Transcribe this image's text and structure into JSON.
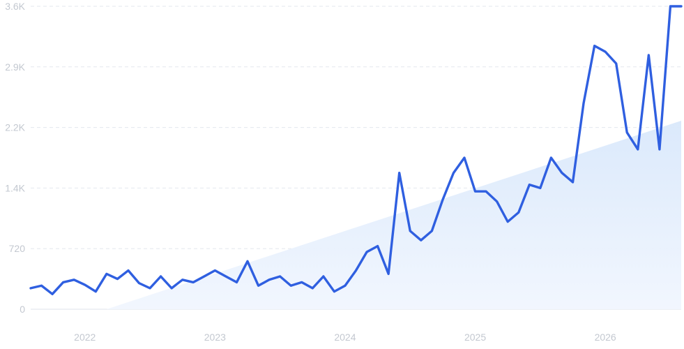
{
  "chart_data": {
    "type": "line",
    "title": "",
    "xlabel": "",
    "ylabel": "",
    "y_ticks": [
      {
        "value": 0,
        "label": "0"
      },
      {
        "value": 720,
        "label": "720"
      },
      {
        "value": 1440,
        "label": "1.4K"
      },
      {
        "value": 2160,
        "label": "2.2K"
      },
      {
        "value": 2880,
        "label": "2.9K"
      },
      {
        "value": 3600,
        "label": "3.6K"
      }
    ],
    "x_ticks": [
      {
        "value": "2022-01",
        "label": "2022"
      },
      {
        "value": "2023-01",
        "label": "2023"
      },
      {
        "value": "2024-01",
        "label": "2024"
      },
      {
        "value": "2025-01",
        "label": "2025"
      },
      {
        "value": "2026-01",
        "label": "2026"
      }
    ],
    "ylim": [
      0,
      3600
    ],
    "xlim": [
      "2021-08",
      "2026-08"
    ],
    "grid": true,
    "colors": {
      "line": "#2f5fe0",
      "trend_fill_top": "#d9e8fb",
      "trend_fill_bottom": "#f1f6fe",
      "grid": "#e3e7ee",
      "tick_text": "#c3c8d0"
    },
    "trend": {
      "type": "area",
      "x": [
        "2022-03",
        "2026-08"
      ],
      "values": [
        0,
        2240
      ]
    },
    "series": [
      {
        "x": [
          "2021-08",
          "2021-09",
          "2021-10",
          "2021-11",
          "2021-12",
          "2022-01",
          "2022-02",
          "2022-03",
          "2022-04",
          "2022-05",
          "2022-06",
          "2022-07",
          "2022-08",
          "2022-09",
          "2022-10",
          "2022-11",
          "2022-12",
          "2023-01",
          "2023-02",
          "2023-03",
          "2023-04",
          "2023-05",
          "2023-06",
          "2023-07",
          "2023-08",
          "2023-09",
          "2023-10",
          "2023-11",
          "2023-12",
          "2024-01",
          "2024-02",
          "2024-03",
          "2024-04",
          "2024-05",
          "2024-06",
          "2024-07",
          "2024-08",
          "2024-09",
          "2024-10",
          "2024-11",
          "2024-12",
          "2025-01",
          "2025-02",
          "2025-03",
          "2025-04",
          "2025-05",
          "2025-06",
          "2025-07",
          "2025-08",
          "2025-09",
          "2025-10",
          "2025-11",
          "2025-12",
          "2026-01",
          "2026-02",
          "2026-03",
          "2026-04",
          "2026-05",
          "2026-06",
          "2026-07",
          "2026-08"
        ],
        "values": [
          250,
          280,
          180,
          320,
          350,
          290,
          210,
          420,
          360,
          460,
          310,
          250,
          390,
          250,
          350,
          320,
          390,
          460,
          390,
          320,
          570,
          280,
          350,
          390,
          280,
          320,
          250,
          390,
          210,
          280,
          460,
          680,
          750,
          420,
          1620,
          930,
          820,
          930,
          1300,
          1620,
          1800,
          1400,
          1400,
          1280,
          1040,
          1150,
          1480,
          1440,
          1800,
          1620,
          1510,
          2450,
          3130,
          3060,
          2920,
          2100,
          1900,
          3020,
          1900,
          3600,
          3600
        ]
      }
    ]
  }
}
